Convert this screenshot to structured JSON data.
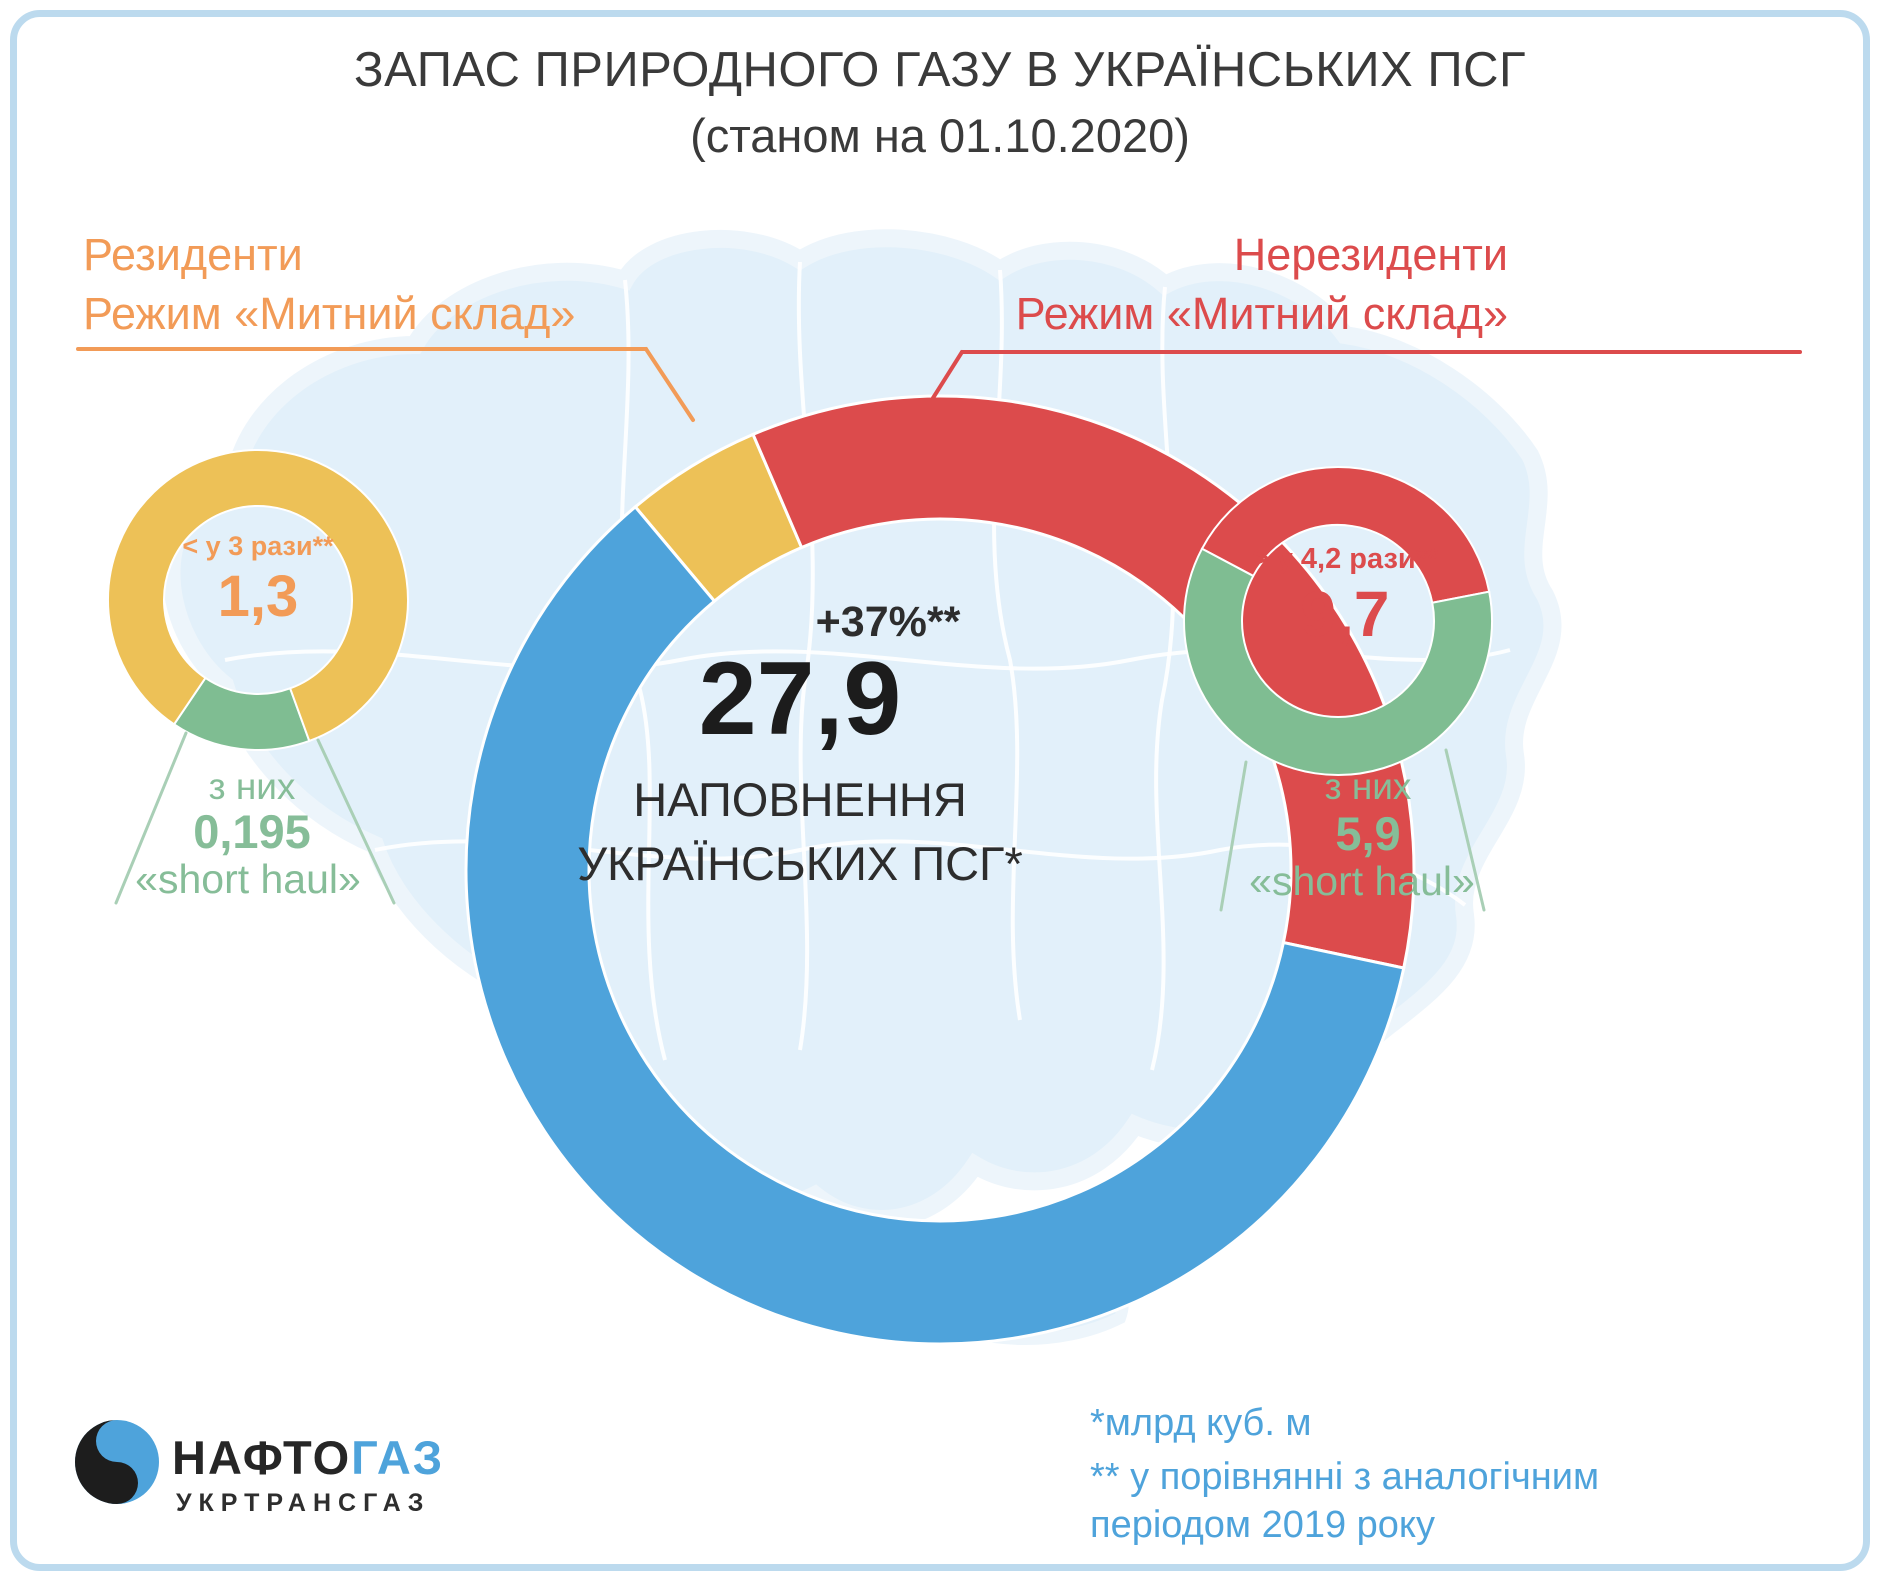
{
  "title": {
    "line1": "ЗАПАС ПРИРОДНОГО ГАЗУ В УКРАЇНСЬКИХ ПСГ",
    "line2": "(станом на 01.10.2020)"
  },
  "headers": {
    "residents": {
      "line1": "Резиденти",
      "line2": "Режим «Митний склад»"
    },
    "nonresidents": {
      "line1": "Нерезиденти",
      "line2": "Режим «Митний склад»"
    }
  },
  "footnotes": {
    "line1": "*млрд куб. м",
    "line2": "** у порівнянні з аналогічним",
    "line3": "періодом 2019 року"
  },
  "footer": {
    "logo_dark": "НАФТО",
    "logo_blue": "ГАЗ",
    "logo_sub": "УКРТРАНСГАЗ"
  },
  "colors": {
    "blue": "#4EA3DB",
    "red": "#DC4B4C",
    "yellow": "#EDC157",
    "orange": "#F29B57",
    "green": "#7FBD92",
    "green_text": "#86BD98",
    "text_dark": "#3A3A3A",
    "map_fill": "#E2F0FA",
    "frame": "#BCDAEE"
  },
  "chart_data": [
    {
      "type": "pie",
      "name": "main",
      "title": "НАПОВНЕННЯ УКРАЇНСЬКИХ ПСГ (станом на 01.10.2020)",
      "units": "млрд куб. м",
      "total": 27.9,
      "center": {
        "change": "+37%**",
        "value": "27,9",
        "caption1": "НАПОВНЕННЯ",
        "caption2": "УКРАЇНСЬКИХ ПСГ*"
      },
      "segments": [
        {
          "label": "Резиденти — Режим «Митний склад»",
          "value": 1.3,
          "color": "#EDC157"
        },
        {
          "label": "Нерезиденти — Режим «Митний склад»",
          "value": 9.7,
          "color": "#DC4B4C"
        },
        {
          "label": "",
          "value": 16.9,
          "color": "#4EA3DB"
        }
      ]
    },
    {
      "type": "pie",
      "name": "residents",
      "title": "Резиденти — Режим «Митний склад»",
      "total": 1.3,
      "center": {
        "note": "< у 3 рази**",
        "value": "1,3"
      },
      "callout": {
        "line1": "з них",
        "value": "0,195",
        "line3": "«short haul»"
      },
      "segments": [
        {
          "label": "«short haul»",
          "value": 0.195,
          "color": "#7FBD92"
        },
        {
          "label": "",
          "value": 1.105,
          "color": "#EDC157"
        }
      ]
    },
    {
      "type": "pie",
      "name": "nonresidents",
      "title": "Нерезиденти — Режим «Митний склад»",
      "total": 9.7,
      "center": {
        "note": "> у 4,2 рази**",
        "value": "9,7"
      },
      "callout": {
        "line1": "з них",
        "value": "5,9",
        "line3": "«short haul»"
      },
      "segments": [
        {
          "label": "",
          "value": 3.8,
          "color": "#DC4B4C"
        },
        {
          "label": "«short haul»",
          "value": 5.9,
          "color": "#7FBD92"
        }
      ]
    }
  ]
}
